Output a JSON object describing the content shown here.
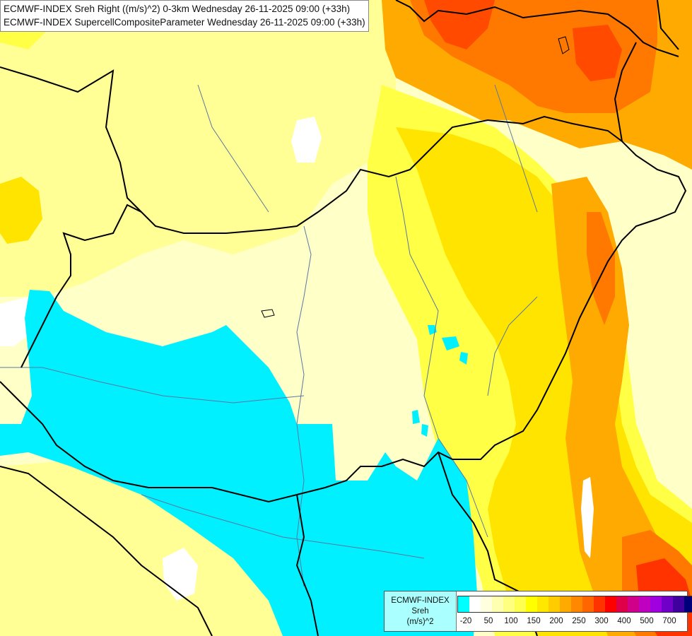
{
  "header": {
    "line1": "ECMWF-INDEX Sreh Right ((m/s)^2) 0-3km Wednesday 26-11-2025 09:00 (+33h)",
    "line2": "ECMWF-INDEX SupercellCompositeParameter Wednesday 26-11-2025 09:00 (+33h)"
  },
  "legend": {
    "title_lines": [
      "ECMWF-INDEX",
      "Sreh",
      "(m/s)^2"
    ],
    "ticks": [
      "-20",
      "50",
      "100",
      "150",
      "200",
      "250",
      "300",
      "400",
      "500",
      "700"
    ],
    "colors": [
      "#00ffff",
      "#ffffff",
      "#ffffe0",
      "#ffffb0",
      "#ffff80",
      "#ffff50",
      "#ffff00",
      "#ffe800",
      "#ffcc00",
      "#ffaa00",
      "#ff8800",
      "#ff6600",
      "#ff3300",
      "#ff0000",
      "#e0004a",
      "#d0008a",
      "#c000c0",
      "#a000e0",
      "#7000c8",
      "#4000a0",
      "#00007a"
    ]
  },
  "map": {
    "palette": {
      "cyan": "#00f0ff",
      "pale": "#ffffc8",
      "light_yellow": "#ffff96",
      "yellow": "#ffff46",
      "gold": "#ffd700",
      "orange": "#ffaa00",
      "dark_orange": "#ff7800",
      "red_orange": "#ff4a00",
      "border": "#000000",
      "river": "#5a78a0"
    }
  }
}
